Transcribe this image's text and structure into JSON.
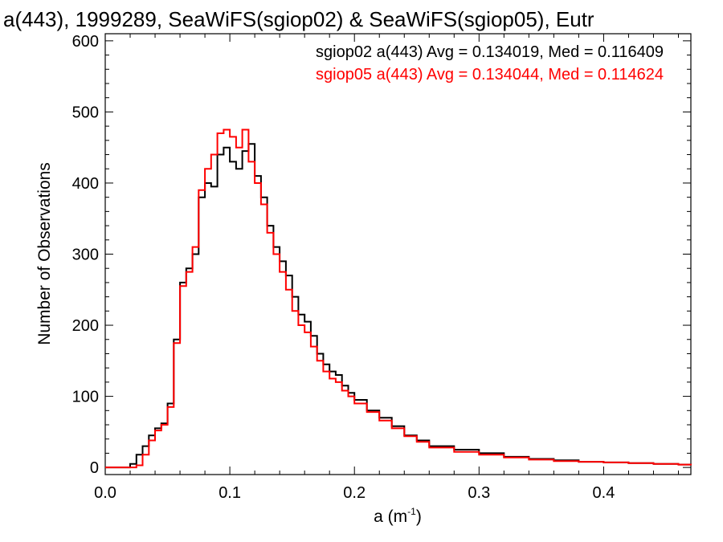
{
  "chart_data": {
    "type": "line",
    "title": "a(443), 1999289, SeaWiFS(sgiop02) & SeaWiFS(sgiop05), Eutr",
    "xlabel": "a (m",
    "xlabel_sup": "-1",
    "xlabel_close": ")",
    "ylabel": "Number of Observations",
    "xlim": [
      0.0,
      0.47
    ],
    "ylim": [
      -10,
      610
    ],
    "xticks": [
      0.0,
      0.1,
      0.2,
      0.3,
      0.4
    ],
    "xtick_labels": [
      "0.0",
      "0.1",
      "0.2",
      "0.3",
      "0.4"
    ],
    "yticks": [
      0,
      100,
      200,
      300,
      400,
      500,
      600
    ],
    "ytick_labels": [
      "0",
      "100",
      "200",
      "300",
      "400",
      "500",
      "600"
    ],
    "grid": false,
    "legend_position": "top-right",
    "series": [
      {
        "name": "sgiop02",
        "legend": "sgiop02 a(443) Avg = 0.134019, Med = 0.116409",
        "color": "#000000",
        "x": [
          0.0,
          0.01,
          0.015,
          0.02,
          0.025,
          0.03,
          0.035,
          0.04,
          0.045,
          0.05,
          0.055,
          0.06,
          0.065,
          0.07,
          0.075,
          0.08,
          0.085,
          0.09,
          0.095,
          0.1,
          0.105,
          0.11,
          0.115,
          0.12,
          0.125,
          0.13,
          0.135,
          0.14,
          0.145,
          0.15,
          0.155,
          0.16,
          0.165,
          0.17,
          0.175,
          0.18,
          0.185,
          0.19,
          0.195,
          0.2,
          0.21,
          0.22,
          0.23,
          0.24,
          0.25,
          0.26,
          0.28,
          0.3,
          0.32,
          0.34,
          0.36,
          0.38,
          0.4,
          0.42,
          0.44,
          0.46,
          0.47
        ],
        "y": [
          0,
          0,
          0,
          5,
          18,
          30,
          45,
          55,
          62,
          90,
          180,
          260,
          280,
          300,
          380,
          400,
          395,
          440,
          450,
          430,
          420,
          445,
          455,
          410,
          380,
          340,
          310,
          290,
          270,
          240,
          215,
          205,
          185,
          160,
          145,
          135,
          130,
          115,
          105,
          95,
          80,
          70,
          58,
          45,
          38,
          30,
          25,
          20,
          15,
          12,
          10,
          8,
          7,
          6,
          5,
          4,
          3
        ]
      },
      {
        "name": "sgiop05",
        "legend": "sgiop05 a(443) Avg = 0.134044, Med = 0.114624",
        "color": "#ff0000",
        "x": [
          0.0,
          0.01,
          0.015,
          0.02,
          0.025,
          0.03,
          0.035,
          0.04,
          0.045,
          0.05,
          0.055,
          0.06,
          0.065,
          0.07,
          0.075,
          0.08,
          0.085,
          0.09,
          0.095,
          0.1,
          0.105,
          0.11,
          0.115,
          0.12,
          0.125,
          0.13,
          0.135,
          0.14,
          0.145,
          0.15,
          0.155,
          0.16,
          0.165,
          0.17,
          0.175,
          0.18,
          0.185,
          0.19,
          0.195,
          0.2,
          0.21,
          0.22,
          0.23,
          0.24,
          0.25,
          0.26,
          0.28,
          0.3,
          0.32,
          0.34,
          0.36,
          0.38,
          0.4,
          0.42,
          0.44,
          0.46,
          0.47
        ],
        "y": [
          0,
          0,
          0,
          0,
          3,
          18,
          38,
          52,
          60,
          85,
          175,
          255,
          275,
          310,
          390,
          420,
          440,
          470,
          475,
          465,
          450,
          475,
          430,
          400,
          370,
          330,
          300,
          275,
          250,
          220,
          200,
          190,
          170,
          150,
          135,
          125,
          120,
          108,
          100,
          90,
          78,
          66,
          55,
          44,
          36,
          28,
          22,
          18,
          14,
          11,
          9,
          8,
          7,
          6,
          5,
          4,
          3
        ]
      }
    ]
  }
}
